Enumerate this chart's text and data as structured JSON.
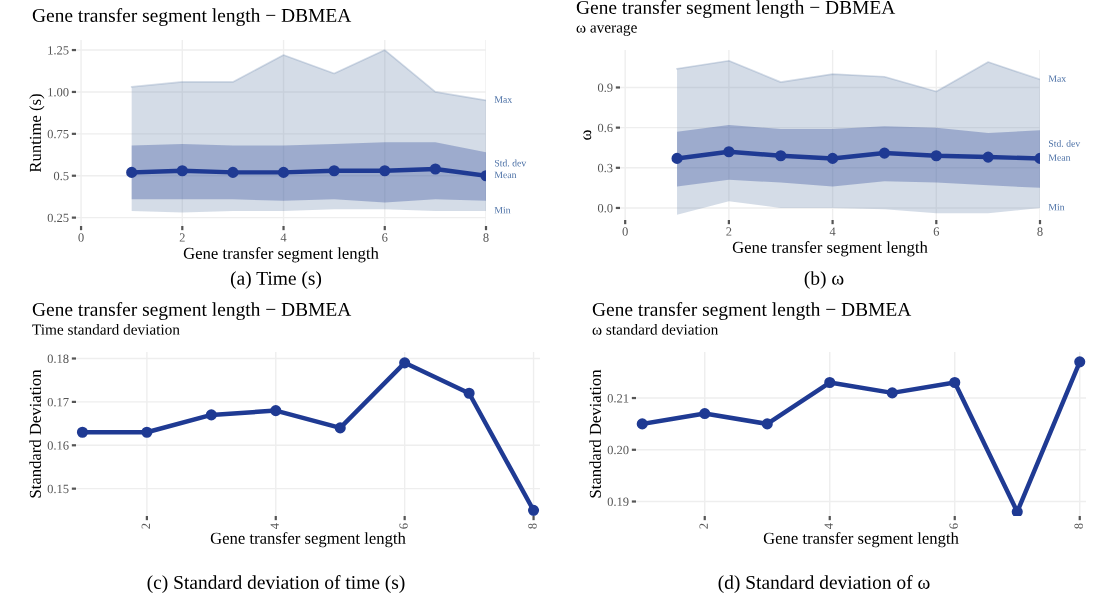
{
  "chart_data": [
    {
      "type": "line",
      "title": "Gene transfer segment length − DBMEA",
      "xlabel": "Gene transfer segment length",
      "ylabel": "Runtime (s)",
      "x": [
        1,
        2,
        3,
        4,
        5,
        6,
        7,
        8
      ],
      "xlim": [
        -0.1,
        8
      ],
      "xticks": [
        0,
        2,
        4,
        6,
        8
      ],
      "ylim": [
        0.2,
        1.31
      ],
      "yticks": [
        0.25,
        0.5,
        0.75,
        {
          "value": 1.0,
          "label": "1.00"
        },
        1.25
      ],
      "grid": true,
      "line_style": "solid",
      "series": [
        {
          "color": "#6f8bb0",
          "marker": "none",
          "values": [
            1.03,
            1.06,
            1.06,
            1.22,
            1.11,
            1.25,
            1.0,
            0.95
          ],
          "lower": [
            0.29,
            0.28,
            0.29,
            0.29,
            0.3,
            0.3,
            0.29,
            0.29
          ],
          "upper": [
            1.03,
            1.06,
            1.06,
            1.22,
            1.11,
            1.25,
            1.0,
            0.95
          ]
        },
        {
          "color": "#1f3a93",
          "marker": "circle",
          "values": [
            0.52,
            0.53,
            0.52,
            0.52,
            0.53,
            0.53,
            0.54,
            0.5
          ],
          "lower": [
            0.36,
            0.36,
            0.36,
            0.35,
            0.36,
            0.34,
            0.36,
            0.35
          ],
          "upper": [
            0.68,
            0.69,
            0.68,
            0.68,
            0.69,
            0.7,
            0.7,
            0.64
          ]
        }
      ],
      "annotations": [
        "Max",
        "Std. dev",
        "Mean",
        "Min",
        "(a) Time (s)"
      ]
    },
    {
      "type": "line",
      "title": "Gene transfer segment length − DBMEA",
      "subtitle": "ω average",
      "xlabel": "Gene transfer segment length",
      "ylabel": "ω",
      "x": [
        1,
        2,
        3,
        4,
        5,
        6,
        7,
        8
      ],
      "xlim": [
        -0.1,
        8
      ],
      "xticks": [
        0,
        2,
        4,
        6,
        8
      ],
      "ylim": [
        -0.09,
        1.18
      ],
      "yticks": [
        {
          "value": 0.0,
          "label": "0.0"
        },
        0.3,
        0.6,
        0.9
      ],
      "grid": true,
      "line_style": "solid",
      "series": [
        {
          "color": "#6f8bb0",
          "marker": "none",
          "values": [
            1.04,
            1.1,
            0.94,
            1.0,
            0.98,
            0.87,
            1.09,
            0.96
          ],
          "lower": [
            -0.05,
            0.05,
            0.0,
            0.0,
            -0.01,
            -0.04,
            -0.04,
            0.0
          ],
          "upper": [
            1.04,
            1.1,
            0.94,
            1.0,
            0.98,
            0.87,
            1.09,
            0.96
          ]
        },
        {
          "color": "#1f3a93",
          "marker": "circle",
          "values": [
            0.37,
            0.42,
            0.39,
            0.37,
            0.41,
            0.39,
            0.38,
            0.37
          ],
          "lower": [
            0.16,
            0.21,
            0.19,
            0.16,
            0.2,
            0.19,
            0.17,
            0.15
          ],
          "upper": [
            0.57,
            0.62,
            0.59,
            0.59,
            0.61,
            0.6,
            0.56,
            0.58
          ]
        }
      ],
      "annotations": [
        "Max",
        "Std. dev",
        "Mean",
        "Min",
        "(b) ω"
      ]
    },
    {
      "type": "line",
      "title": "Gene transfer segment length − DBMEA",
      "subtitle": "Time standard deviation",
      "xlabel": "Gene transfer segment length",
      "ylabel": "Standard Deviation",
      "x": [
        1,
        2,
        3,
        4,
        5,
        6,
        7,
        8
      ],
      "xlim": [
        0.9,
        8.1
      ],
      "xticks": [
        2,
        4,
        6,
        8
      ],
      "ylim": [
        0.1437,
        0.1815
      ],
      "yticks": [
        0.15,
        0.16,
        0.17,
        0.18
      ],
      "grid": true,
      "line_style": "solid",
      "marker": "circle",
      "series": [
        {
          "color": "#1f3a93",
          "values": [
            0.163,
            0.163,
            0.167,
            0.168,
            0.164,
            0.179,
            0.172,
            0.145
          ]
        }
      ],
      "annotations": [
        "(c) Standard deviation of time (s)"
      ]
    },
    {
      "type": "line",
      "title": "Gene transfer segment length − DBMEA",
      "subtitle": "ω standard deviation",
      "xlabel": "Gene transfer segment length",
      "ylabel": "Standard Deviation",
      "x": [
        1,
        2,
        3,
        4,
        5,
        6,
        7,
        8
      ],
      "xlim": [
        0.9,
        8.1
      ],
      "xticks": [
        2,
        4,
        6,
        8
      ],
      "ylim": [
        0.1872,
        0.2189
      ],
      "yticks": [
        0.19,
        {
          "value": 0.2,
          "label": "0.20"
        },
        0.21
      ],
      "grid": true,
      "line_style": "solid",
      "marker": "circle",
      "series": [
        {
          "color": "#1f3a93",
          "values": [
            0.205,
            0.207,
            0.205,
            0.213,
            0.211,
            0.213,
            0.188,
            0.217
          ]
        }
      ],
      "annotations": [
        "(d) Standard deviation of ω"
      ]
    }
  ]
}
